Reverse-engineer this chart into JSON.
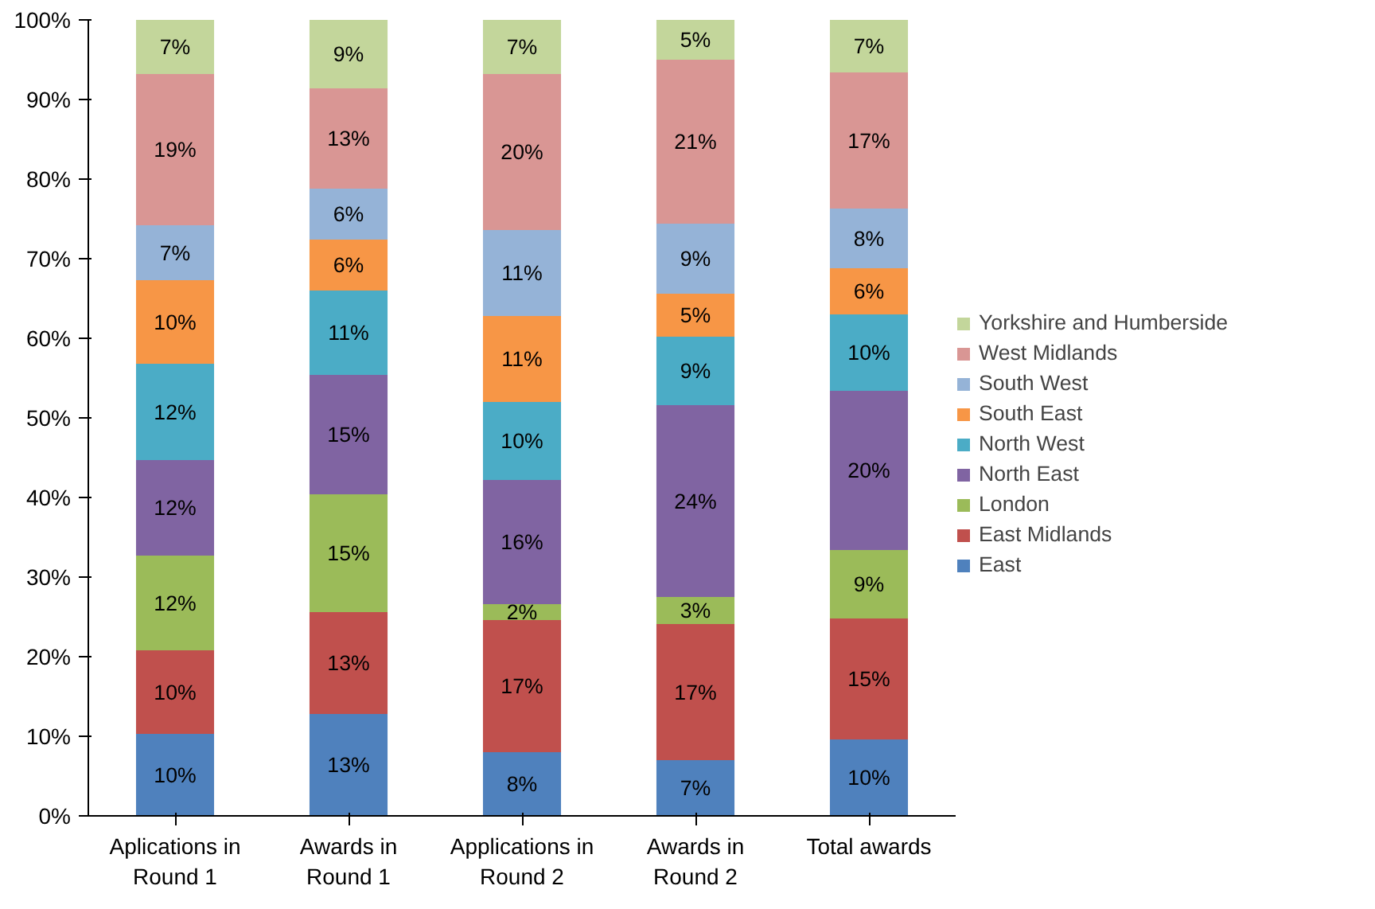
{
  "chart_data": {
    "type": "bar",
    "stacked": true,
    "categories": [
      "Aplications in\nRound 1",
      "Awards in\nRound 1",
      "Applications in\nRound 2",
      "Awards in\nRound 2",
      "Total awards"
    ],
    "series": [
      {
        "name": "East",
        "color": "#4f81bd",
        "values": [
          10.3,
          12.8,
          8,
          7,
          9.6
        ],
        "value_labels": [
          "10%",
          "13%",
          "8%",
          "7%",
          "10%"
        ]
      },
      {
        "name": "East Midlands",
        "color": "#c0504d",
        "values": [
          10.5,
          12.8,
          16.6,
          17.1,
          15.2
        ],
        "value_labels": [
          "10%",
          "13%",
          "17%",
          "17%",
          "15%"
        ]
      },
      {
        "name": "London",
        "color": "#9bbb59",
        "values": [
          11.9,
          14.8,
          2,
          3.4,
          8.6
        ],
        "value_labels": [
          "12%",
          "15%",
          "2%",
          "3%",
          "9%"
        ]
      },
      {
        "name": "North East",
        "color": "#8064a2",
        "values": [
          12,
          15,
          15.6,
          24.1,
          20
        ],
        "value_labels": [
          "12%",
          "15%",
          "16%",
          "24%",
          "20%"
        ]
      },
      {
        "name": "North West",
        "color": "#4bacc6",
        "values": [
          12.1,
          10.6,
          9.8,
          8.6,
          9.6
        ],
        "value_labels": [
          "12%",
          "11%",
          "10%",
          "9%",
          "10%"
        ]
      },
      {
        "name": "South East",
        "color": "#f79646",
        "values": [
          10.5,
          6.4,
          10.8,
          5.4,
          5.8
        ],
        "value_labels": [
          "10%",
          "6%",
          "11%",
          "5%",
          "6%"
        ]
      },
      {
        "name": "South West",
        "color": "#95b3d7",
        "values": [
          6.9,
          6.4,
          10.8,
          8.8,
          7.5
        ],
        "value_labels": [
          "7%",
          "6%",
          "11%",
          "9%",
          "8%"
        ]
      },
      {
        "name": "West Midlands",
        "color": "#d99694",
        "values": [
          19,
          12.6,
          19.6,
          20.6,
          17.1
        ],
        "value_labels": [
          "19%",
          "13%",
          "20%",
          "21%",
          "17%"
        ]
      },
      {
        "name": "Yorkshire and Humberside",
        "color": "#c3d69b",
        "values": [
          6.8,
          8.6,
          6.8,
          5,
          6.6
        ],
        "value_labels": [
          "7%",
          "9%",
          "7%",
          "5%",
          "7%"
        ]
      }
    ],
    "ylim": [
      0,
      100
    ],
    "yticks": [
      {
        "value": 0,
        "label": "0%"
      },
      {
        "value": 10,
        "label": "10%"
      },
      {
        "value": 20,
        "label": "20%"
      },
      {
        "value": 30,
        "label": "30%"
      },
      {
        "value": 40,
        "label": "40%"
      },
      {
        "value": 50,
        "label": "50%"
      },
      {
        "value": 60,
        "label": "60%"
      },
      {
        "value": 70,
        "label": "70%"
      },
      {
        "value": 80,
        "label": "80%"
      },
      {
        "value": 90,
        "label": "90%"
      },
      {
        "value": 100,
        "label": "100%"
      }
    ],
    "grid": false,
    "legend": "right"
  }
}
